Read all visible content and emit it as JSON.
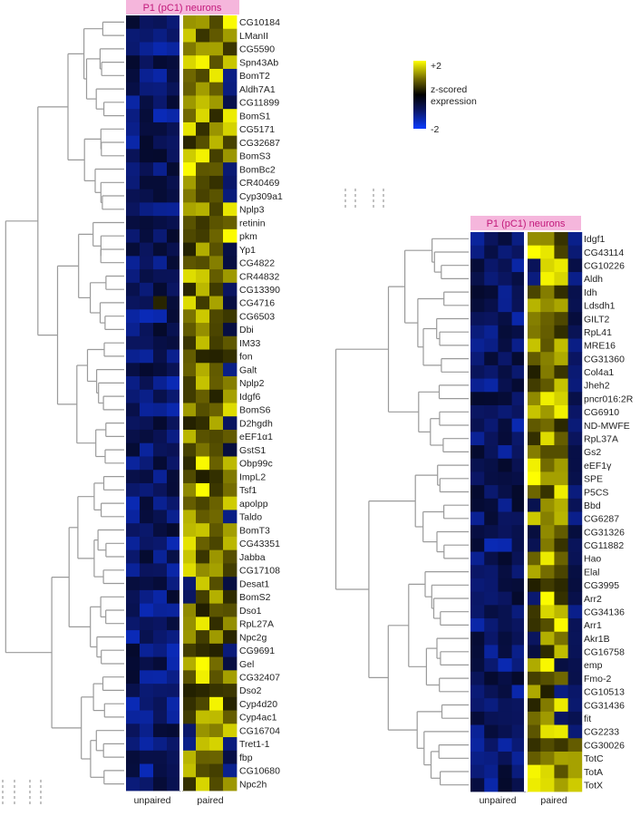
{
  "chart_data": [
    {
      "type": "heatmap",
      "title": "P1 (pC1) neurons",
      "column_groups": [
        "unpaired",
        "paired"
      ],
      "rows": [
        "CG10184",
        "LManII",
        "CG5590",
        "Spn43Ab",
        "BomT2",
        "Aldh7A1",
        "CG11899",
        "BomS1",
        "CG5171",
        "CG32687",
        "BomS3",
        "BomBc2",
        "CR40469",
        "Cyp309a1",
        "Nplp3",
        "retinin",
        "pkm",
        "Yp1",
        "CG4822",
        "CR44832",
        "CG13390",
        "CG4716",
        "CG6503",
        "Dbi",
        "IM33",
        "fon",
        "Galt",
        "Nplp2",
        "Idgf6",
        "BomS6",
        "D2hgdh",
        "eEF1α1",
        "GstS1",
        "Obp99c",
        "ImpL2",
        "Tsf1",
        "apolpp",
        "Taldo",
        "BomT3",
        "CG43351",
        "Jabba",
        "CG17108",
        "Desat1",
        "BomS2",
        "Dso1",
        "RpL27A",
        "Npc2g",
        "CG9691",
        "Gel",
        "CG32407",
        "Dso2",
        "Cyp4d20",
        "Cyp4ac1",
        "CG16704",
        "Tret1-1",
        "fbp",
        "CG10680",
        "Npc2h"
      ]
    },
    {
      "type": "heatmap",
      "title": "P1 (pC1) neurons",
      "column_groups": [
        "unpaired",
        "paired"
      ],
      "rows": [
        "Idgf1",
        "CG43114",
        "CG10226",
        "Aldh",
        "Idh",
        "Ldsdh1",
        "GILT2",
        "RpL41",
        "MRE16",
        "CG31360",
        "Col4a1",
        "Jheh2",
        "pncr016:2R",
        "CG6910",
        "ND-MWFE",
        "RpL37A",
        "Gs2",
        "eEF1γ",
        "SPE",
        "P5CS",
        "Bbd",
        "CG6287",
        "CG31326",
        "CG11882",
        "Hao",
        "Elal",
        "CG3995",
        "Arr2",
        "CG34136",
        "Arr1",
        "Akr1B",
        "CG16758",
        "emp",
        "Fmo-2",
        "CG10513",
        "CG31436",
        "fit",
        "CG2233",
        "CG30026",
        "TotC",
        "TotA",
        "TotX"
      ]
    }
  ],
  "legend": {
    "max_label": "+2",
    "min_label": "-2",
    "title_line1": "z-scored",
    "title_line2": "expression",
    "colors": [
      "#0a3cff",
      "#0a1560",
      "#000000",
      "#6b6300",
      "#ffff00"
    ]
  }
}
